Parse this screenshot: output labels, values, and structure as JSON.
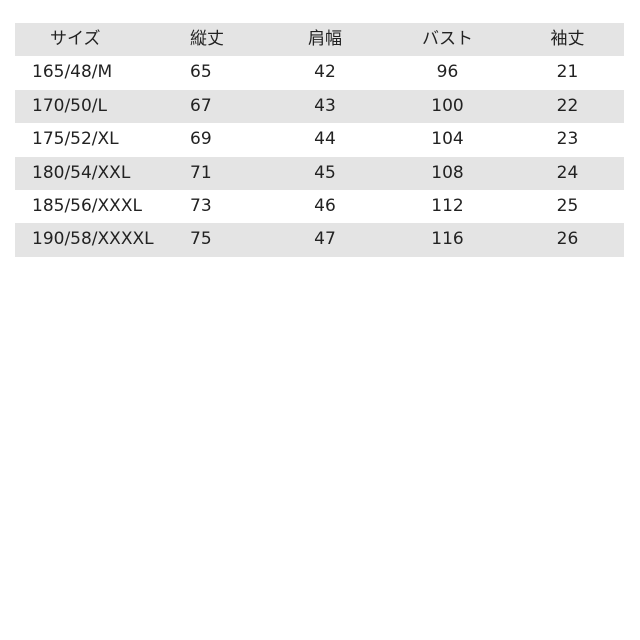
{
  "table": {
    "headers": [
      "サイズ",
      "縦丈",
      "肩幅",
      "バスト",
      "袖丈"
    ],
    "rows": [
      [
        "165/48/M",
        "65",
        "42",
        "96",
        "21"
      ],
      [
        "170/50/L",
        "67",
        "43",
        "100",
        "22"
      ],
      [
        "175/52/XL",
        "69",
        "44",
        "104",
        "23"
      ],
      [
        "180/54/XXL",
        "71",
        "45",
        "108",
        "24"
      ],
      [
        "185/56/XXXL",
        "73",
        "46",
        "112",
        "25"
      ],
      [
        "190/58/XXXXL",
        "75",
        "47",
        "116",
        "26"
      ]
    ],
    "stripe_color": "#e4e4e4"
  }
}
